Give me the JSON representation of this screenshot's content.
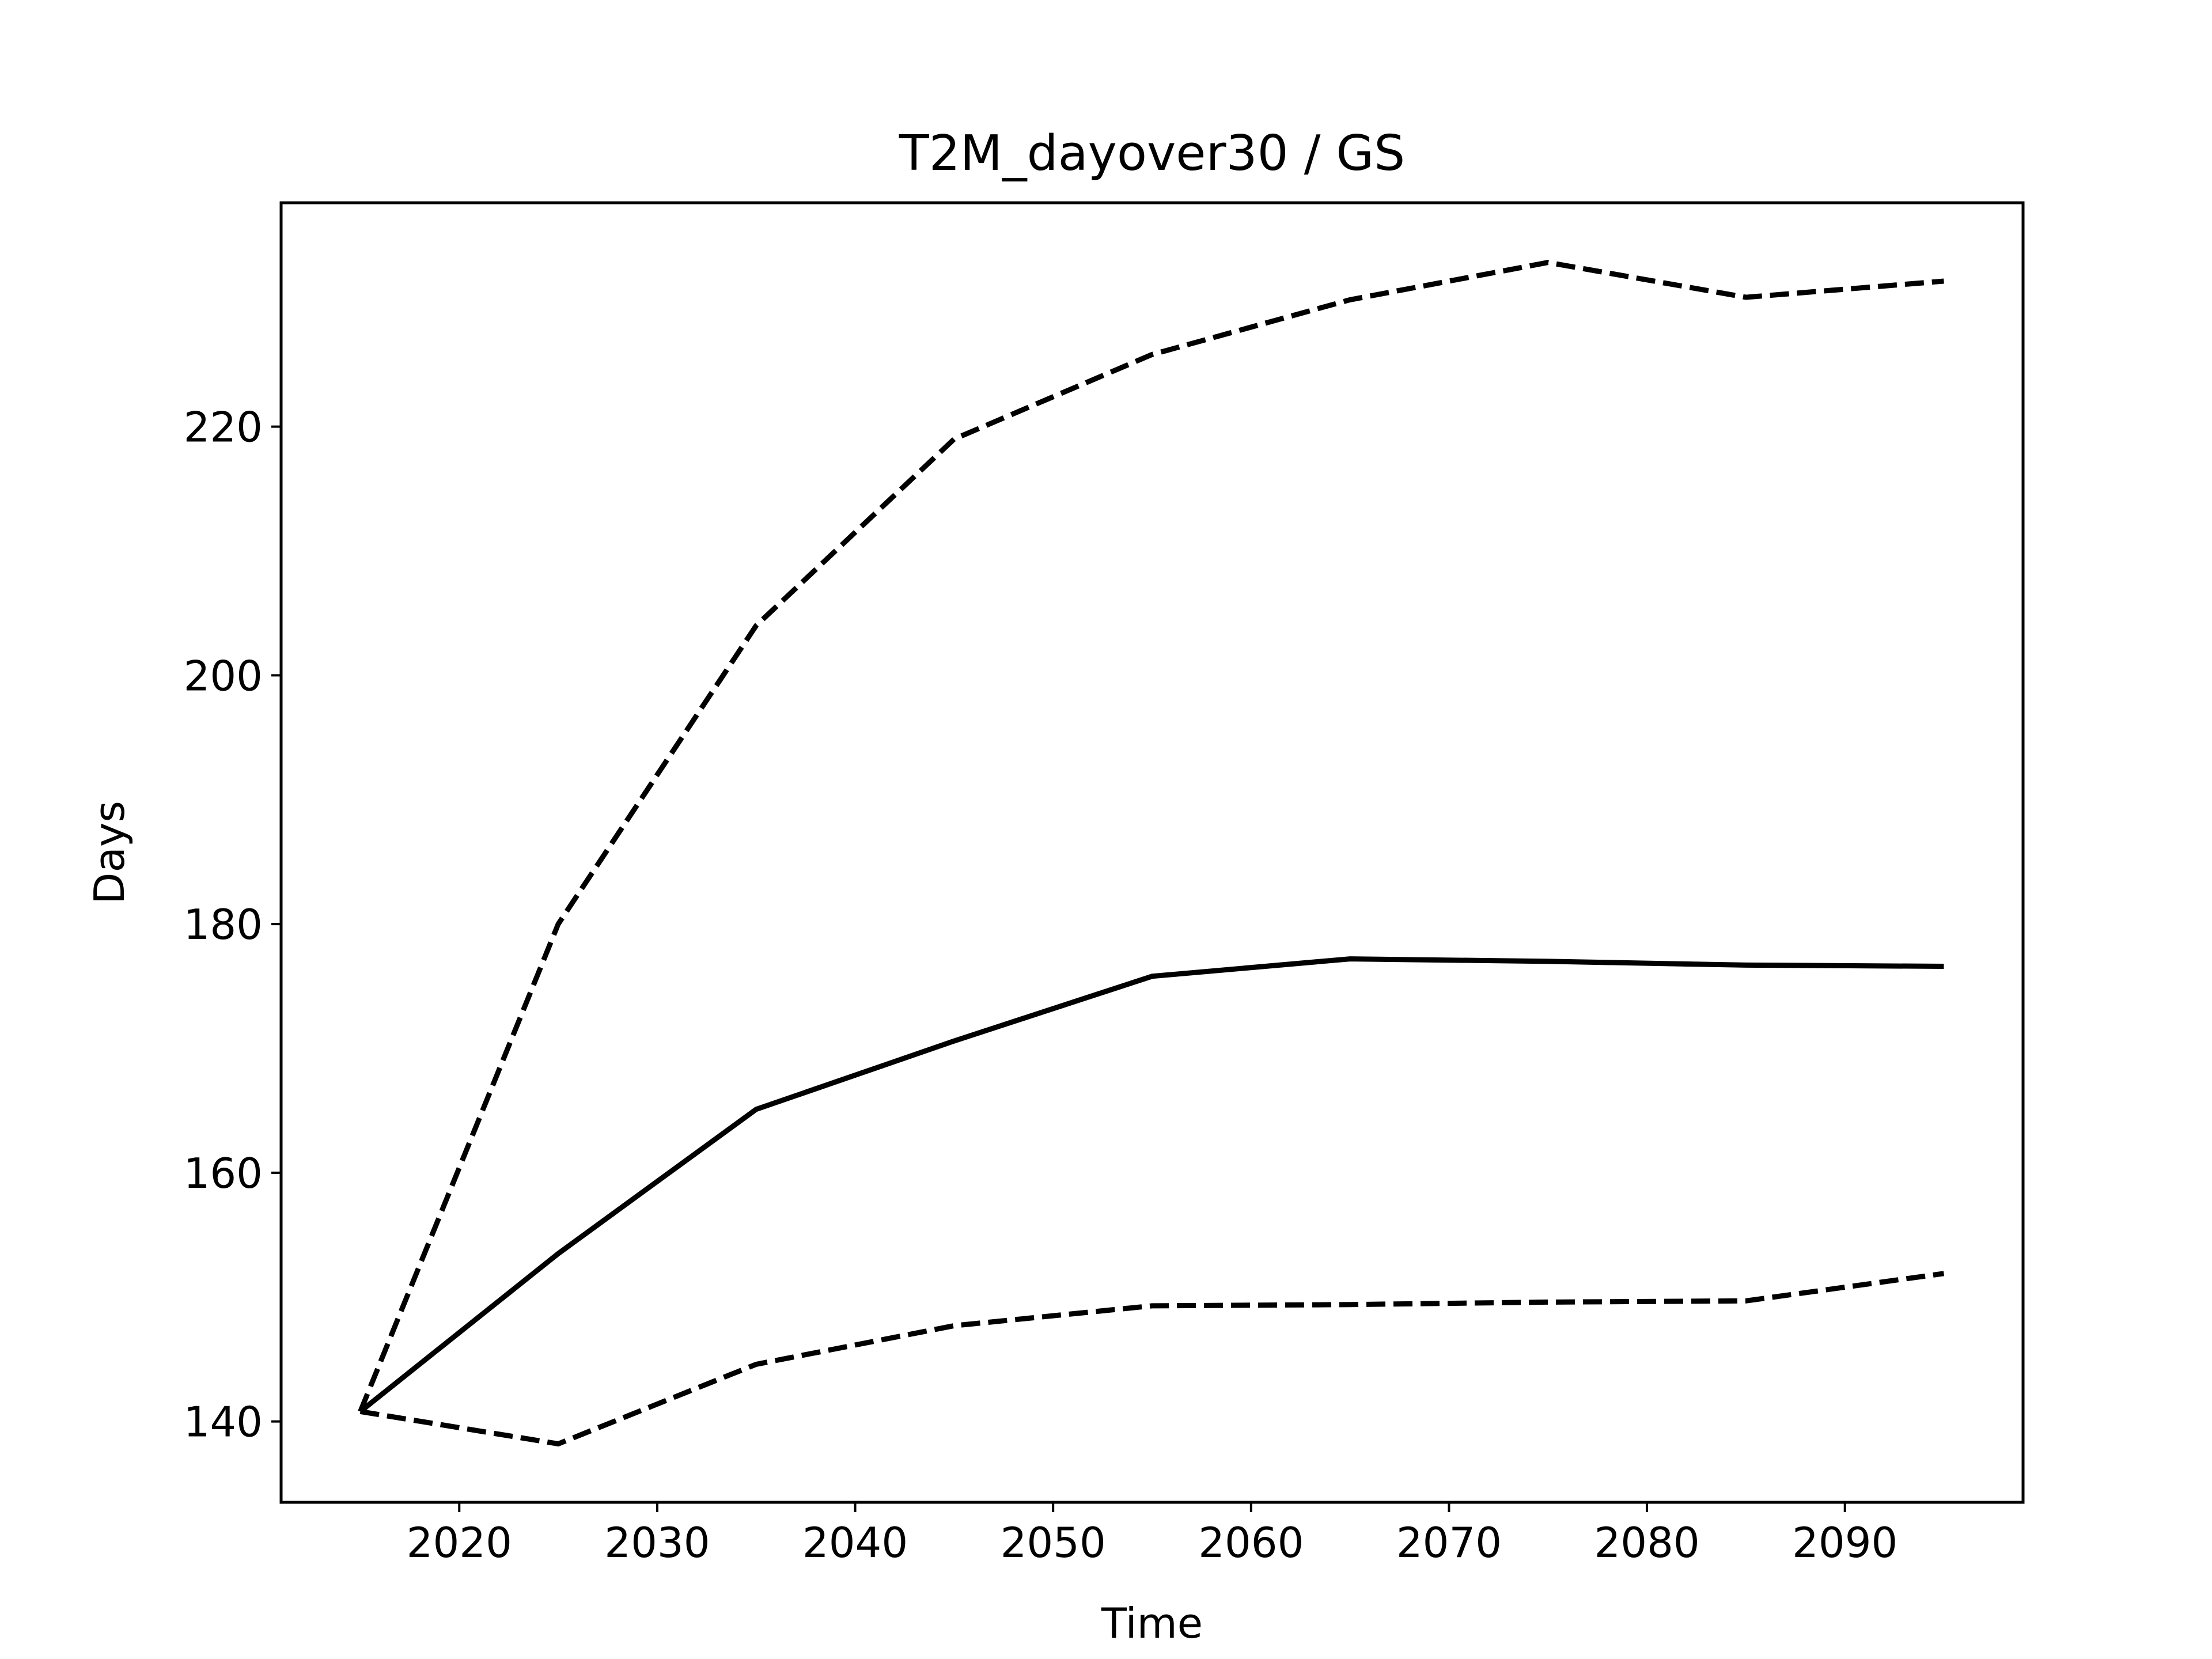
{
  "chart_data": {
    "type": "line",
    "title": "T2M_dayover30 / GS",
    "xlabel": "Time",
    "ylabel": "Days",
    "xlim": [
      2011,
      2099
    ],
    "ylim": [
      133.5,
      238
    ],
    "xticks": [
      2020,
      2030,
      2040,
      2050,
      2060,
      2070,
      2080,
      2090
    ],
    "yticks": [
      140,
      160,
      180,
      200,
      220
    ],
    "grid": false,
    "legend": "none",
    "line_color": "#000000",
    "x": [
      2015,
      2025,
      2035,
      2045,
      2055,
      2065,
      2075,
      2085,
      2095
    ],
    "series": [
      {
        "style": "dashed",
        "values": [
          140.8,
          180.0,
          204.0,
          219.0,
          225.8,
          230.2,
          233.2,
          230.4,
          231.7
        ]
      },
      {
        "style": "solid",
        "values": [
          140.8,
          153.5,
          165.1,
          170.6,
          175.8,
          177.2,
          177.0,
          176.7,
          176.6
        ]
      },
      {
        "style": "dashed",
        "values": [
          140.8,
          138.2,
          144.6,
          147.7,
          149.3,
          149.4,
          149.6,
          149.7,
          151.9
        ]
      }
    ]
  }
}
